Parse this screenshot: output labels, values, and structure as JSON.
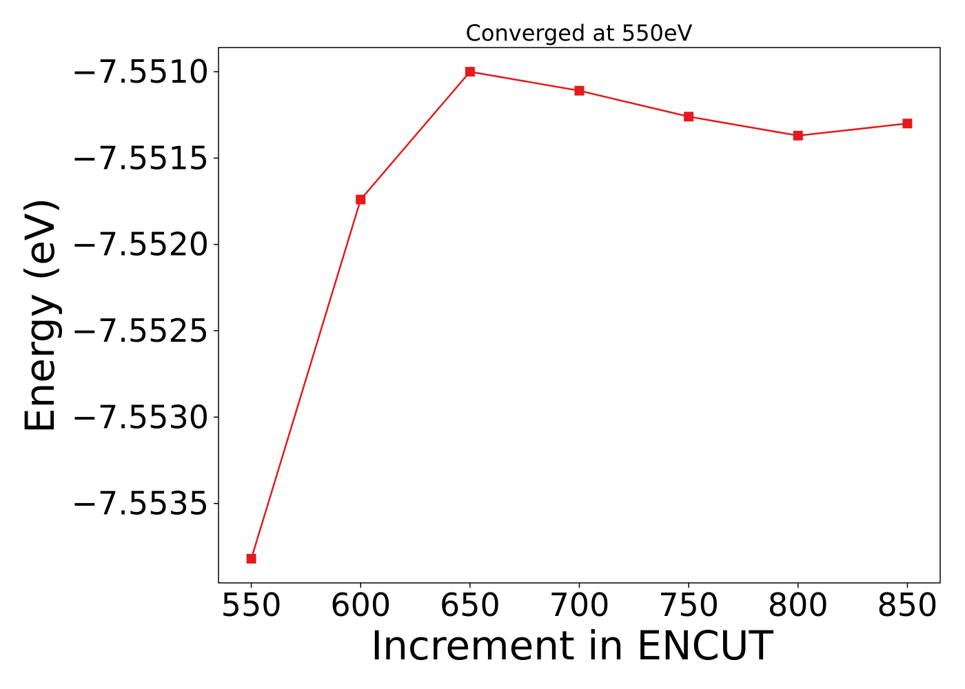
{
  "chart_data": {
    "type": "line",
    "title": "Converged at 550eV",
    "xlabel": "Increment in ENCUT",
    "ylabel": "Energy (eV)",
    "x": [
      550,
      600,
      650,
      700,
      750,
      800,
      850
    ],
    "series": [
      {
        "values": [
          -7.55382,
          -7.55174,
          -7.551,
          -7.55111,
          -7.55126,
          -7.55137,
          -7.5513
        ],
        "color": "#e41a1c",
        "marker": "square"
      }
    ],
    "xlim": [
      535,
      865
    ],
    "ylim": [
      -7.55396,
      -7.55086
    ],
    "xticks": [
      550,
      600,
      650,
      700,
      750,
      800,
      850
    ],
    "xtick_labels": [
      "550",
      "600",
      "650",
      "700",
      "750",
      "800",
      "850"
    ],
    "yticks": [
      -7.5535,
      -7.553,
      -7.5525,
      -7.552,
      -7.5515,
      -7.551
    ],
    "ytick_labels": [
      "−7.5535",
      "−7.5530",
      "−7.5525",
      "−7.5520",
      "−7.5515",
      "−7.5510"
    ],
    "grid": false,
    "legend": false
  }
}
